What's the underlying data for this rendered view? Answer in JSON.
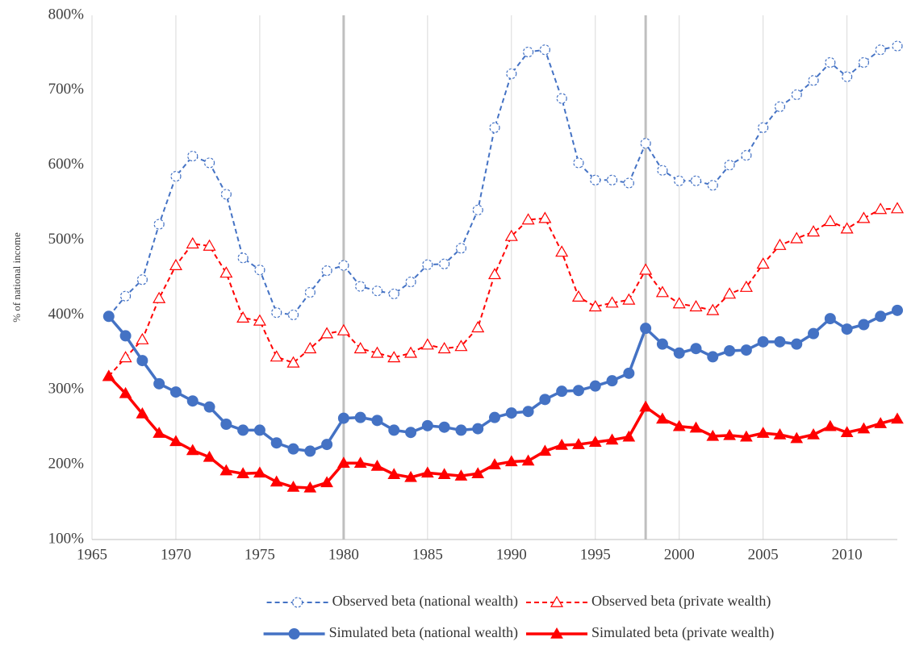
{
  "chart_data": {
    "type": "line",
    "y_label": "% of national income",
    "x": [
      1966,
      1967,
      1968,
      1969,
      1970,
      1971,
      1972,
      1973,
      1974,
      1975,
      1976,
      1977,
      1978,
      1979,
      1980,
      1981,
      1982,
      1983,
      1984,
      1985,
      1986,
      1987,
      1988,
      1989,
      1990,
      1991,
      1992,
      1993,
      1994,
      1995,
      1996,
      1997,
      1998,
      1999,
      2000,
      2001,
      2002,
      2003,
      2004,
      2005,
      2006,
      2007,
      2008,
      2009,
      2010,
      2011,
      2012,
      2013
    ],
    "series": [
      {
        "name": "Observed beta (national wealth)",
        "color": "#4472c4",
        "dashed": true,
        "marker": "circle-open",
        "values": [
          398,
          425,
          447,
          521,
          585,
          612,
          603,
          561,
          476,
          460,
          403,
          400,
          430,
          459,
          466,
          438,
          432,
          428,
          444,
          467,
          468,
          489,
          540,
          650,
          722,
          751,
          754,
          689,
          603,
          580,
          580,
          576,
          629,
          593,
          579,
          579,
          573,
          600,
          613,
          650,
          678,
          694,
          713,
          737,
          718,
          737,
          754,
          759
        ]
      },
      {
        "name": "Observed beta (private wealth)",
        "color": "#ff0000",
        "dashed": true,
        "marker": "triangle-open",
        "values": [
          318,
          343,
          367,
          422,
          466,
          495,
          492,
          456,
          396,
          392,
          344,
          336,
          355,
          375,
          379,
          355,
          349,
          343,
          349,
          360,
          355,
          358,
          383,
          454,
          505,
          527,
          529,
          484,
          424,
          411,
          416,
          420,
          460,
          430,
          415,
          411,
          406,
          428,
          437,
          468,
          493,
          502,
          511,
          525,
          515,
          529,
          541,
          542
        ]
      },
      {
        "name": "Simulated beta (national wealth)",
        "color": "#4472c4",
        "dashed": false,
        "marker": "circle",
        "values": [
          398,
          372,
          339,
          308,
          297,
          285,
          277,
          254,
          246,
          246,
          229,
          221,
          218,
          227,
          262,
          263,
          259,
          246,
          243,
          252,
          250,
          246,
          248,
          263,
          269,
          271,
          287,
          298,
          299,
          305,
          312,
          322,
          382,
          361,
          349,
          355,
          344,
          352,
          353,
          364,
          364,
          361,
          375,
          395,
          381,
          387,
          398,
          406
        ]
      },
      {
        "name": "Simulated beta (private wealth)",
        "color": "#ff0000",
        "dashed": false,
        "marker": "triangle",
        "values": [
          318,
          295,
          268,
          242,
          231,
          219,
          210,
          192,
          188,
          189,
          177,
          170,
          169,
          176,
          202,
          202,
          198,
          187,
          183,
          189,
          187,
          185,
          188,
          200,
          204,
          205,
          218,
          226,
          227,
          230,
          233,
          237,
          277,
          261,
          251,
          249,
          238,
          239,
          237,
          242,
          240,
          235,
          240,
          251,
          243,
          248,
          255,
          261
        ]
      }
    ],
    "xlim": [
      1965,
      2013
    ],
    "xticks": [
      1965,
      1970,
      1975,
      1980,
      1985,
      1990,
      1995,
      2000,
      2005,
      2010
    ],
    "ylim": [
      100,
      800
    ],
    "yticks": [
      {
        "value": 100,
        "label": "100%"
      },
      {
        "value": 200,
        "label": "200%"
      },
      {
        "value": 300,
        "label": "300%"
      },
      {
        "value": 400,
        "label": "400%"
      },
      {
        "value": 500,
        "label": "500%"
      },
      {
        "value": 600,
        "label": "600%"
      },
      {
        "value": 700,
        "label": "700%"
      },
      {
        "value": 800,
        "label": "800%"
      }
    ],
    "grid": "x",
    "vlines": [
      1980,
      1998
    ],
    "legend": "bottom"
  }
}
